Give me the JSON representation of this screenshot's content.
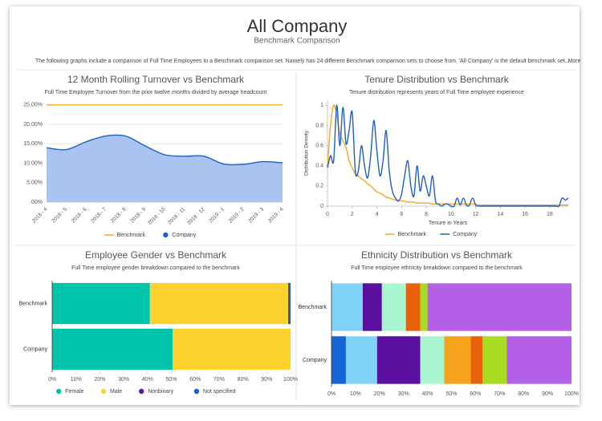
{
  "header": {
    "title": "All Company",
    "subtitle": "Benchmark Comparison",
    "description": "The following graphs include a comparison of Full Time Employees to a Benchmark comparison set. Namely has 24 different Benchmark comparison sets to choose from. 'All Company' is the default benchmark set. More",
    "more": "..."
  },
  "chart_data": [
    {
      "type": "line",
      "title": "12 Month Rolling Turnover vs Benchmark",
      "subtitle": "Full Time Employee Turnover from the prior twelve months divided by average headcount",
      "categories": [
        "2018 - 4",
        "2018 - 5",
        "2018 - 6",
        "2018 - 7",
        "2018 - 8",
        "2018 - 9",
        "2018 - 10",
        "2018 - 11",
        "2018 - 12",
        "2019 - 1",
        "2019 - 2",
        "2019 - 3",
        "2019 - 4"
      ],
      "series": [
        {
          "name": "Benchmark",
          "color": "#f5a623",
          "values": [
            25,
            25,
            25,
            25,
            25,
            25,
            25,
            25,
            25,
            25,
            25,
            25,
            25
          ]
        },
        {
          "name": "Company",
          "color": "#1f5fbf",
          "area": true,
          "fill": "#a9c4f0",
          "values": [
            14,
            13.5,
            15.5,
            17,
            17,
            14.5,
            12.2,
            11.8,
            11.8,
            9.8,
            9.7,
            10.4,
            10.1
          ]
        }
      ],
      "ylim": [
        0,
        26
      ],
      "yticks": [
        {
          "value": 0,
          "label": ".00%"
        },
        {
          "value": 5,
          "label": "5.00%"
        },
        {
          "value": 10,
          "label": "10.00%"
        },
        {
          "value": 15,
          "label": "15.00%"
        },
        {
          "value": 20,
          "label": "20.00%"
        },
        {
          "value": 25,
          "label": "25.00%"
        }
      ],
      "grid": true
    },
    {
      "type": "line",
      "title": "Tenure Distribution vs Benchmark",
      "subtitle": "Tenure distribution represents years of Full Time employee experience",
      "xlabel": "Tenure in Years",
      "ylabel": "Distribution Density",
      "x": [
        0,
        0.25,
        0.5,
        0.75,
        1,
        1.25,
        1.5,
        1.75,
        2,
        2.25,
        2.5,
        2.75,
        3,
        3.25,
        3.5,
        3.75,
        4,
        4.25,
        4.5,
        4.75,
        5,
        5.25,
        5.5,
        5.75,
        6,
        6.25,
        6.5,
        6.75,
        7,
        7.25,
        7.5,
        7.75,
        8,
        8.25,
        8.5,
        8.75,
        9,
        9.25,
        9.5,
        9.75,
        10,
        10.25,
        10.5,
        10.75,
        11,
        11.25,
        11.5,
        11.75,
        12,
        12.25,
        12.5,
        12.75,
        13,
        13.25,
        13.5,
        13.75,
        14,
        14.25,
        14.5,
        14.75,
        15,
        15.25,
        15.5,
        15.75,
        16,
        16.25,
        16.5,
        16.75,
        17,
        17.25,
        17.5,
        17.75,
        18,
        18.25,
        18.5,
        18.75,
        19,
        19.25,
        19.5
      ],
      "series": [
        {
          "name": "Benchmark",
          "color": "#f5a623",
          "values": [
            0.4,
            0.8,
            1,
            0.9,
            0.72,
            0.65,
            0.58,
            0.45,
            0.38,
            0.32,
            0.3,
            0.27,
            0.25,
            0.22,
            0.2,
            0.17,
            0.14,
            0.13,
            0.11,
            0.09,
            0.08,
            0.07,
            0.06,
            0.06,
            0.05,
            0.05,
            0.04,
            0.04,
            0.04,
            0.03,
            0.03,
            0.03,
            0.03,
            0.03,
            0.02,
            0.02,
            0.02,
            0.02,
            0.02,
            0.02,
            0.02,
            0.02,
            0.02,
            0.02,
            0.02,
            0.02,
            0.02,
            0.02,
            0.02,
            0.01,
            0.01,
            0.01,
            0.01,
            0.01,
            0.01,
            0.01,
            0.01,
            0.01,
            0.01,
            0.01,
            0.01,
            0.01,
            0.01,
            0.01,
            0.01,
            0.01,
            0.01,
            0.01,
            0.01,
            0.01,
            0.01,
            0.01,
            0.01,
            0.01,
            0.01,
            0.01,
            0.01,
            0.01,
            0.01
          ]
        },
        {
          "name": "Company",
          "color": "#1f5fbf",
          "values": [
            0.38,
            0.5,
            0.45,
            1,
            0.6,
            0.98,
            0.62,
            0.75,
            0.93,
            0.35,
            0.35,
            0.6,
            0.4,
            0.28,
            0.5,
            0.85,
            0.55,
            0.3,
            0.45,
            0.75,
            0.35,
            0.15,
            0.08,
            0.05,
            0.12,
            0.3,
            0.45,
            0.2,
            0.1,
            0.4,
            0.15,
            0.3,
            0.2,
            0.1,
            0.3,
            0.05,
            0.02,
            0,
            0.02,
            0.02,
            0,
            0,
            0.08,
            0.01,
            0.08,
            0.01,
            0.01,
            0.08,
            0.01,
            0,
            0,
            0,
            0,
            0,
            0,
            0,
            0,
            0,
            0,
            0,
            0,
            0,
            0,
            0,
            0,
            0,
            0,
            0,
            0,
            0,
            0,
            0,
            0,
            0,
            0,
            0,
            0.08,
            0.06,
            0.08
          ]
        }
      ],
      "xlim": [
        0,
        19.5
      ],
      "xticks": [
        0,
        2,
        4,
        6,
        8,
        10,
        12,
        14,
        16,
        18
      ],
      "ylim": [
        0,
        1.05
      ],
      "yticks": [
        0,
        0.2,
        0.4,
        0.6,
        0.8,
        1
      ],
      "grid": false
    },
    {
      "type": "stacked-bar",
      "title": "Employee Gender vs Benchmark",
      "subtitle": "Full Time employee gender breakdown compared to the benchmark",
      "categories": [
        "Benchmark",
        "Company"
      ],
      "series": [
        {
          "name": "Female",
          "color": "#00c4aa",
          "values": [
            41,
            50.5
          ]
        },
        {
          "name": "Male",
          "color": "#fdd22f",
          "values": [
            58,
            49.5
          ]
        },
        {
          "name": "Nonbinary",
          "color": "#5a1aa8",
          "values": [
            0.2,
            0
          ]
        },
        {
          "name": "Not specified",
          "color": "#1d5fd6",
          "values": [
            0.8,
            0
          ]
        }
      ],
      "xlim": [
        0,
        100
      ],
      "xticks": [
        {
          "value": 0,
          "label": "0%"
        },
        {
          "value": 10,
          "label": "10%"
        },
        {
          "value": 20,
          "label": "20%"
        },
        {
          "value": 30,
          "label": "30%"
        },
        {
          "value": 40,
          "label": "40%"
        },
        {
          "value": 50,
          "label": "50%"
        },
        {
          "value": 60,
          "label": "60%"
        },
        {
          "value": 70,
          "label": "70%"
        },
        {
          "value": 80,
          "label": "80%"
        },
        {
          "value": 90,
          "label": "90%"
        },
        {
          "value": 100,
          "label": "100%"
        }
      ]
    },
    {
      "type": "stacked-bar",
      "title": "Ethnicity Distribution vs Benchmark",
      "subtitle": "Full Time employee ethnicity breakdown compared to the benchmark",
      "categories": [
        "Benchmark",
        "Company"
      ],
      "series": [
        {
          "color": "#1565d8",
          "values": [
            0,
            6
          ]
        },
        {
          "color": "#7fd3f7",
          "values": [
            13,
            13
          ]
        },
        {
          "color": "#5a0f9e",
          "values": [
            8,
            18
          ]
        },
        {
          "color": "#a8f5cf",
          "values": [
            10,
            10
          ]
        },
        {
          "color": "#f7a21b",
          "values": [
            0,
            11
          ]
        },
        {
          "color": "#e8620c",
          "values": [
            6,
            5
          ]
        },
        {
          "color": "#a8dc22",
          "values": [
            3,
            10
          ]
        },
        {
          "color": "#b35fe8",
          "values": [
            60,
            27
          ]
        }
      ],
      "xlim": [
        0,
        100
      ],
      "xticks": [
        {
          "value": 0,
          "label": "0%"
        },
        {
          "value": 10,
          "label": "10%"
        },
        {
          "value": 20,
          "label": "20%"
        },
        {
          "value": 30,
          "label": "30%"
        },
        {
          "value": 40,
          "label": "40%"
        },
        {
          "value": 50,
          "label": "50%"
        },
        {
          "value": 60,
          "label": "60%"
        },
        {
          "value": 70,
          "label": "70%"
        },
        {
          "value": 80,
          "label": "80%"
        },
        {
          "value": 90,
          "label": "90%"
        },
        {
          "value": 100,
          "label": "100%"
        }
      ]
    }
  ]
}
